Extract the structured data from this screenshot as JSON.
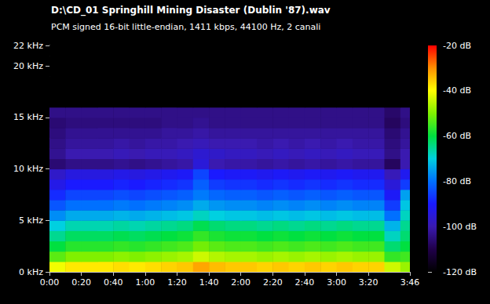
{
  "chart_data": {
    "type": "heatmap",
    "title": "D:\\CD_01 Springhill Mining Disaster (Dublin '87).wav",
    "subtitle": "PCM signed 16-bit little-endian, 1411 kbps, 44100 Hz, 2 canali",
    "time_bins": [
      0,
      10,
      20,
      30,
      40,
      50,
      60,
      70,
      80,
      90,
      100,
      110,
      120,
      130,
      140,
      150,
      160,
      170,
      180,
      190,
      200,
      210,
      220,
      226
    ],
    "freq_bins": [
      0,
      1,
      2,
      3,
      4,
      5,
      6,
      7,
      8,
      9,
      10,
      11,
      12,
      13,
      14,
      15,
      16,
      17,
      18,
      19,
      20,
      21,
      22
    ],
    "cells": [
      [
        -41,
        -38,
        -38,
        -38,
        -37,
        -38,
        -37,
        -36,
        -35,
        -32,
        -34,
        -35,
        -35,
        -36,
        -35,
        -36,
        -35,
        -36,
        -35,
        -36,
        -36,
        -44,
        -48
      ],
      [
        -53,
        -50,
        -50,
        -50,
        -49,
        -50,
        -49,
        -48,
        -47,
        -44,
        -46,
        -47,
        -47,
        -48,
        -47,
        -48,
        -47,
        -48,
        -47,
        -48,
        -48,
        -56,
        -55
      ],
      [
        -60,
        -57,
        -57,
        -57,
        -56,
        -57,
        -56,
        -55,
        -54,
        -51,
        -53,
        -54,
        -54,
        -55,
        -54,
        -55,
        -54,
        -55,
        -54,
        -55,
        -55,
        -63,
        -60
      ],
      [
        -65,
        -62,
        -62,
        -62,
        -61,
        -62,
        -61,
        -60,
        -59,
        -56,
        -58,
        -59,
        -59,
        -60,
        -59,
        -60,
        -59,
        -60,
        -59,
        -60,
        -60,
        -68,
        -63
      ],
      [
        -70,
        -67,
        -67,
        -67,
        -66,
        -67,
        -66,
        -65,
        -64,
        -61,
        -63,
        -64,
        -64,
        -65,
        -64,
        -65,
        -64,
        -65,
        -64,
        -65,
        -65,
        -73,
        -65
      ],
      [
        -77,
        -74,
        -74,
        -74,
        -73,
        -74,
        -73,
        -72,
        -71,
        -68,
        -70,
        -71,
        -71,
        -72,
        -71,
        -72,
        -71,
        -72,
        -71,
        -72,
        -72,
        -80,
        -68
      ],
      [
        -83,
        -80,
        -80,
        -80,
        -79,
        -80,
        -79,
        -78,
        -77,
        -74,
        -76,
        -77,
        -77,
        -78,
        -77,
        -78,
        -77,
        -78,
        -77,
        -78,
        -78,
        -86,
        -71
      ],
      [
        -88,
        -85,
        -85,
        -85,
        -84,
        -85,
        -84,
        -83,
        -82,
        -79,
        -81,
        -82,
        -82,
        -83,
        -82,
        -83,
        -82,
        -83,
        -82,
        -83,
        -83,
        -91,
        -75
      ],
      [
        -93,
        -90,
        -90,
        -90,
        -89,
        -90,
        -89,
        -88,
        -87,
        -82,
        -86,
        -87,
        -87,
        -88,
        -87,
        -88,
        -87,
        -88,
        -87,
        -88,
        -88,
        -95,
        -86
      ],
      [
        -97,
        -94,
        -94,
        -94,
        -93,
        -94,
        -93,
        -92,
        -91,
        -85,
        -90,
        -91,
        -91,
        -92,
        -91,
        -92,
        -91,
        -92,
        -91,
        -92,
        -92,
        -99,
        -92
      ],
      [
        -106,
        -104,
        -104,
        -104,
        -103,
        -104,
        -103,
        -102,
        -101,
        -95,
        -100,
        -101,
        -101,
        -102,
        -101,
        -102,
        -101,
        -102,
        -101,
        -102,
        -102,
        -108,
        -100
      ],
      [
        -103,
        -100,
        -100,
        -100,
        -99,
        -100,
        -99,
        -99,
        -98,
        -96,
        -97,
        -98,
        -98,
        -99,
        -98,
        -99,
        -98,
        -99,
        -98,
        -99,
        -99,
        -104,
        -100
      ],
      [
        -104,
        -102,
        -102,
        -102,
        -101,
        -102,
        -101,
        -101,
        -100,
        -99,
        -100,
        -100,
        -100,
        -101,
        -100,
        -101,
        -100,
        -101,
        -100,
        -101,
        -101,
        -105,
        -102
      ],
      [
        -105,
        -103,
        -103,
        -103,
        -103,
        -103,
        -103,
        -102,
        -102,
        -101,
        -102,
        -102,
        -102,
        -102,
        -102,
        -102,
        -102,
        -102,
        -102,
        -102,
        -102,
        -106,
        -103
      ],
      [
        -106,
        -105,
        -105,
        -105,
        -105,
        -105,
        -105,
        -104,
        -104,
        -103,
        -104,
        -104,
        -104,
        -104,
        -104,
        -104,
        -104,
        -104,
        -104,
        -104,
        -104,
        -108,
        -105
      ],
      [
        -104,
        -104,
        -104,
        -104,
        -104,
        -104,
        -104,
        -104,
        -104,
        -104,
        -104,
        -104,
        -104,
        -104,
        -104,
        -104,
        -104,
        -104,
        -104,
        -104,
        -104,
        -107,
        -104
      ],
      [
        -120,
        -120,
        -120,
        -120,
        -120,
        -120,
        -120,
        -120,
        -120,
        -120,
        -120,
        -120,
        -120,
        -120,
        -120,
        -120,
        -120,
        -120,
        -120,
        -120,
        -120,
        -120,
        -120
      ],
      [
        -120,
        -120,
        -120,
        -120,
        -120,
        -120,
        -120,
        -120,
        -120,
        -120,
        -120,
        -120,
        -120,
        -120,
        -120,
        -120,
        -120,
        -120,
        -120,
        -120,
        -120,
        -120,
        -120
      ],
      [
        -120,
        -120,
        -120,
        -120,
        -120,
        -120,
        -120,
        -120,
        -120,
        -120,
        -120,
        -120,
        -120,
        -120,
        -120,
        -120,
        -120,
        -120,
        -120,
        -120,
        -120,
        -120,
        -120
      ],
      [
        -120,
        -120,
        -120,
        -120,
        -120,
        -120,
        -120,
        -120,
        -120,
        -120,
        -120,
        -120,
        -120,
        -120,
        -120,
        -120,
        -120,
        -120,
        -120,
        -120,
        -120,
        -120,
        -120
      ],
      [
        -120,
        -120,
        -120,
        -120,
        -120,
        -120,
        -120,
        -120,
        -120,
        -120,
        -120,
        -120,
        -120,
        -120,
        -120,
        -120,
        -120,
        -120,
        -120,
        -120,
        -120,
        -120,
        -120
      ],
      [
        -120,
        -120,
        -120,
        -120,
        -120,
        -120,
        -120,
        -120,
        -120,
        -120,
        -120,
        -120,
        -120,
        -120,
        -120,
        -120,
        -120,
        -120,
        -120,
        -120,
        -120,
        -120,
        -120
      ]
    ],
    "xlim": [
      0,
      226
    ],
    "xticks": [
      {
        "value": 0,
        "label": "0:00"
      },
      {
        "value": 20,
        "label": "0:20"
      },
      {
        "value": 40,
        "label": "0:40"
      },
      {
        "value": 60,
        "label": "1:00"
      },
      {
        "value": 80,
        "label": "1:20"
      },
      {
        "value": 100,
        "label": "1:40"
      },
      {
        "value": 120,
        "label": "2:00"
      },
      {
        "value": 140,
        "label": "2:20"
      },
      {
        "value": 160,
        "label": "2:40"
      },
      {
        "value": 180,
        "label": "3:00"
      },
      {
        "value": 200,
        "label": "3:20"
      },
      {
        "value": 226,
        "label": "3:46"
      }
    ],
    "ylim": [
      0,
      22
    ],
    "yticks": [
      {
        "value": 0,
        "label": "0 kHz"
      },
      {
        "value": 5,
        "label": "5 kHz"
      },
      {
        "value": 10,
        "label": "10 kHz"
      },
      {
        "value": 15,
        "label": "15 kHz"
      },
      {
        "value": 20,
        "label": "20 kHz"
      },
      {
        "value": 22,
        "label": "22 kHz"
      }
    ],
    "colorbar_range": [
      -120,
      -20
    ],
    "colorbar_ticks": [
      {
        "value": -20,
        "label": "-20 dB"
      },
      {
        "value": -40,
        "label": "-40 dB"
      },
      {
        "value": -60,
        "label": "-60 dB"
      },
      {
        "value": -80,
        "label": "-80 dB"
      },
      {
        "value": -100,
        "label": "-100 dB"
      },
      {
        "value": -120,
        "label": "-120 dB"
      }
    ],
    "grid": false
  }
}
